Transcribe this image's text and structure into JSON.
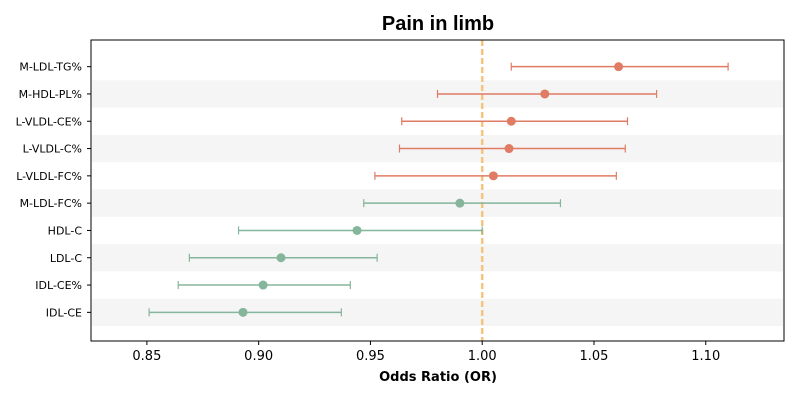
{
  "chart_data": {
    "type": "forest",
    "title": "Pain in limb",
    "xlabel": "Odds Ratio (OR)",
    "xlim": [
      0.825,
      1.135
    ],
    "xticks": [
      0.85,
      0.9,
      0.95,
      1.0,
      1.05,
      1.1
    ],
    "xtick_labels": [
      "0.85",
      "0.90",
      "0.95",
      "1.00",
      "1.05",
      "1.10"
    ],
    "reference_line": 1.0,
    "colors": {
      "risk": "#e07b64",
      "protective": "#85b59b",
      "reference": "#f5c57d",
      "band": "#f5f5f5"
    },
    "rows": [
      {
        "label": "M-LDL-TG%",
        "or": 1.061,
        "lo": 1.013,
        "hi": 1.11
      },
      {
        "label": "M-HDL-PL%",
        "or": 1.028,
        "lo": 0.98,
        "hi": 1.078
      },
      {
        "label": "L-VLDL-CE%",
        "or": 1.013,
        "lo": 0.964,
        "hi": 1.065
      },
      {
        "label": "L-VLDL-C%",
        "or": 1.012,
        "lo": 0.963,
        "hi": 1.064
      },
      {
        "label": "L-VLDL-FC%",
        "or": 1.005,
        "lo": 0.952,
        "hi": 1.06
      },
      {
        "label": "M-LDL-FC%",
        "or": 0.99,
        "lo": 0.947,
        "hi": 1.035
      },
      {
        "label": "HDL-C",
        "or": 0.944,
        "lo": 0.891,
        "hi": 1.0
      },
      {
        "label": "LDL-C",
        "or": 0.91,
        "lo": 0.869,
        "hi": 0.953
      },
      {
        "label": "IDL-CE%",
        "or": 0.902,
        "lo": 0.864,
        "hi": 0.941
      },
      {
        "label": "IDL-CE",
        "or": 0.893,
        "lo": 0.851,
        "hi": 0.937
      }
    ]
  }
}
